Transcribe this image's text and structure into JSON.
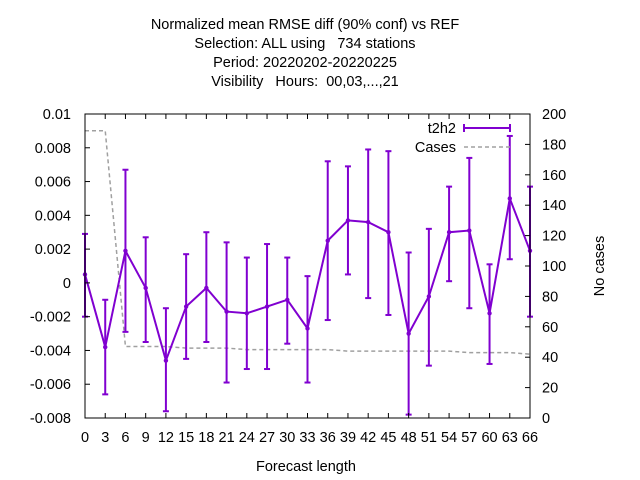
{
  "chart_data": {
    "type": "line",
    "title_lines": [
      "Normalized mean RMSE diff (90% conf) vs REF",
      "Selection: ALL using   734 stations",
      "Period: 20220202-20220225",
      "Visibility   Hours:  00,03,...,21"
    ],
    "xlabel": "Forecast length",
    "ylabel": "",
    "y2label": "No cases",
    "xlim": [
      0,
      66
    ],
    "ylim": [
      -0.008,
      0.01
    ],
    "y2lim": [
      0,
      200
    ],
    "grid": false,
    "legend_position": "top-right",
    "x_ticks": [
      "0",
      "3",
      "6",
      "9",
      "12",
      "15",
      "18",
      "21",
      "24",
      "27",
      "30",
      "33",
      "36",
      "39",
      "42",
      "45",
      "48",
      "51",
      "54",
      "57",
      "60",
      "63",
      "66"
    ],
    "y_ticks": [
      "0.01",
      "0.008",
      "0.006",
      "0.004",
      "0.002",
      "0",
      "-0.002",
      "-0.004",
      "-0.006",
      "-0.008"
    ],
    "y2_ticks": [
      "200",
      "180",
      "160",
      "140",
      "120",
      "100",
      "80",
      "60",
      "40",
      "20",
      "0"
    ],
    "series": [
      {
        "name": "t2h2",
        "color": "#8000d0",
        "style": "errorbars",
        "x": [
          0,
          3,
          6,
          9,
          12,
          15,
          18,
          21,
          24,
          27,
          30,
          33,
          36,
          39,
          42,
          45,
          48,
          51,
          54,
          57,
          60,
          63,
          66
        ],
        "y": [
          0.0005,
          -0.0038,
          0.0019,
          -0.0003,
          -0.0046,
          -0.0014,
          -0.0003,
          -0.0017,
          -0.0018,
          -0.0014,
          -0.001,
          -0.0027,
          0.0025,
          0.0037,
          0.0036,
          0.003,
          -0.003,
          -0.0008,
          0.003,
          0.0031,
          -0.0018,
          0.005,
          0.0019
        ],
        "y_low": [
          -0.002,
          -0.0066,
          -0.0029,
          -0.0035,
          -0.0076,
          -0.0045,
          -0.0035,
          -0.0059,
          -0.0051,
          -0.0051,
          -0.0036,
          -0.0059,
          -0.0022,
          0.0005,
          -0.0009,
          -0.0019,
          -0.0078,
          -0.0049,
          0.0001,
          -0.0015,
          -0.0048,
          0.0014,
          -0.002
        ],
        "y_high": [
          0.0029,
          -0.001,
          0.0067,
          0.0027,
          -0.0015,
          0.0017,
          0.003,
          0.0024,
          0.0015,
          0.0023,
          0.0015,
          0.0004,
          0.0072,
          0.0069,
          0.0079,
          0.0078,
          0.0018,
          0.0032,
          0.0057,
          0.0074,
          0.0011,
          0.0087,
          0.0057
        ]
      },
      {
        "name": "Cases",
        "color": "#a0a0a0",
        "style": "dashed",
        "axis": "y2",
        "x": [
          0,
          3,
          6,
          9,
          12,
          15,
          18,
          21,
          24,
          27,
          30,
          33,
          36,
          39,
          42,
          45,
          48,
          51,
          54,
          57,
          60,
          63,
          66
        ],
        "y": [
          189,
          189,
          47,
          47,
          47,
          46,
          46,
          46,
          45,
          45,
          45,
          45,
          45,
          44,
          44,
          44,
          44,
          44,
          44,
          43,
          43,
          43,
          42
        ]
      }
    ]
  }
}
